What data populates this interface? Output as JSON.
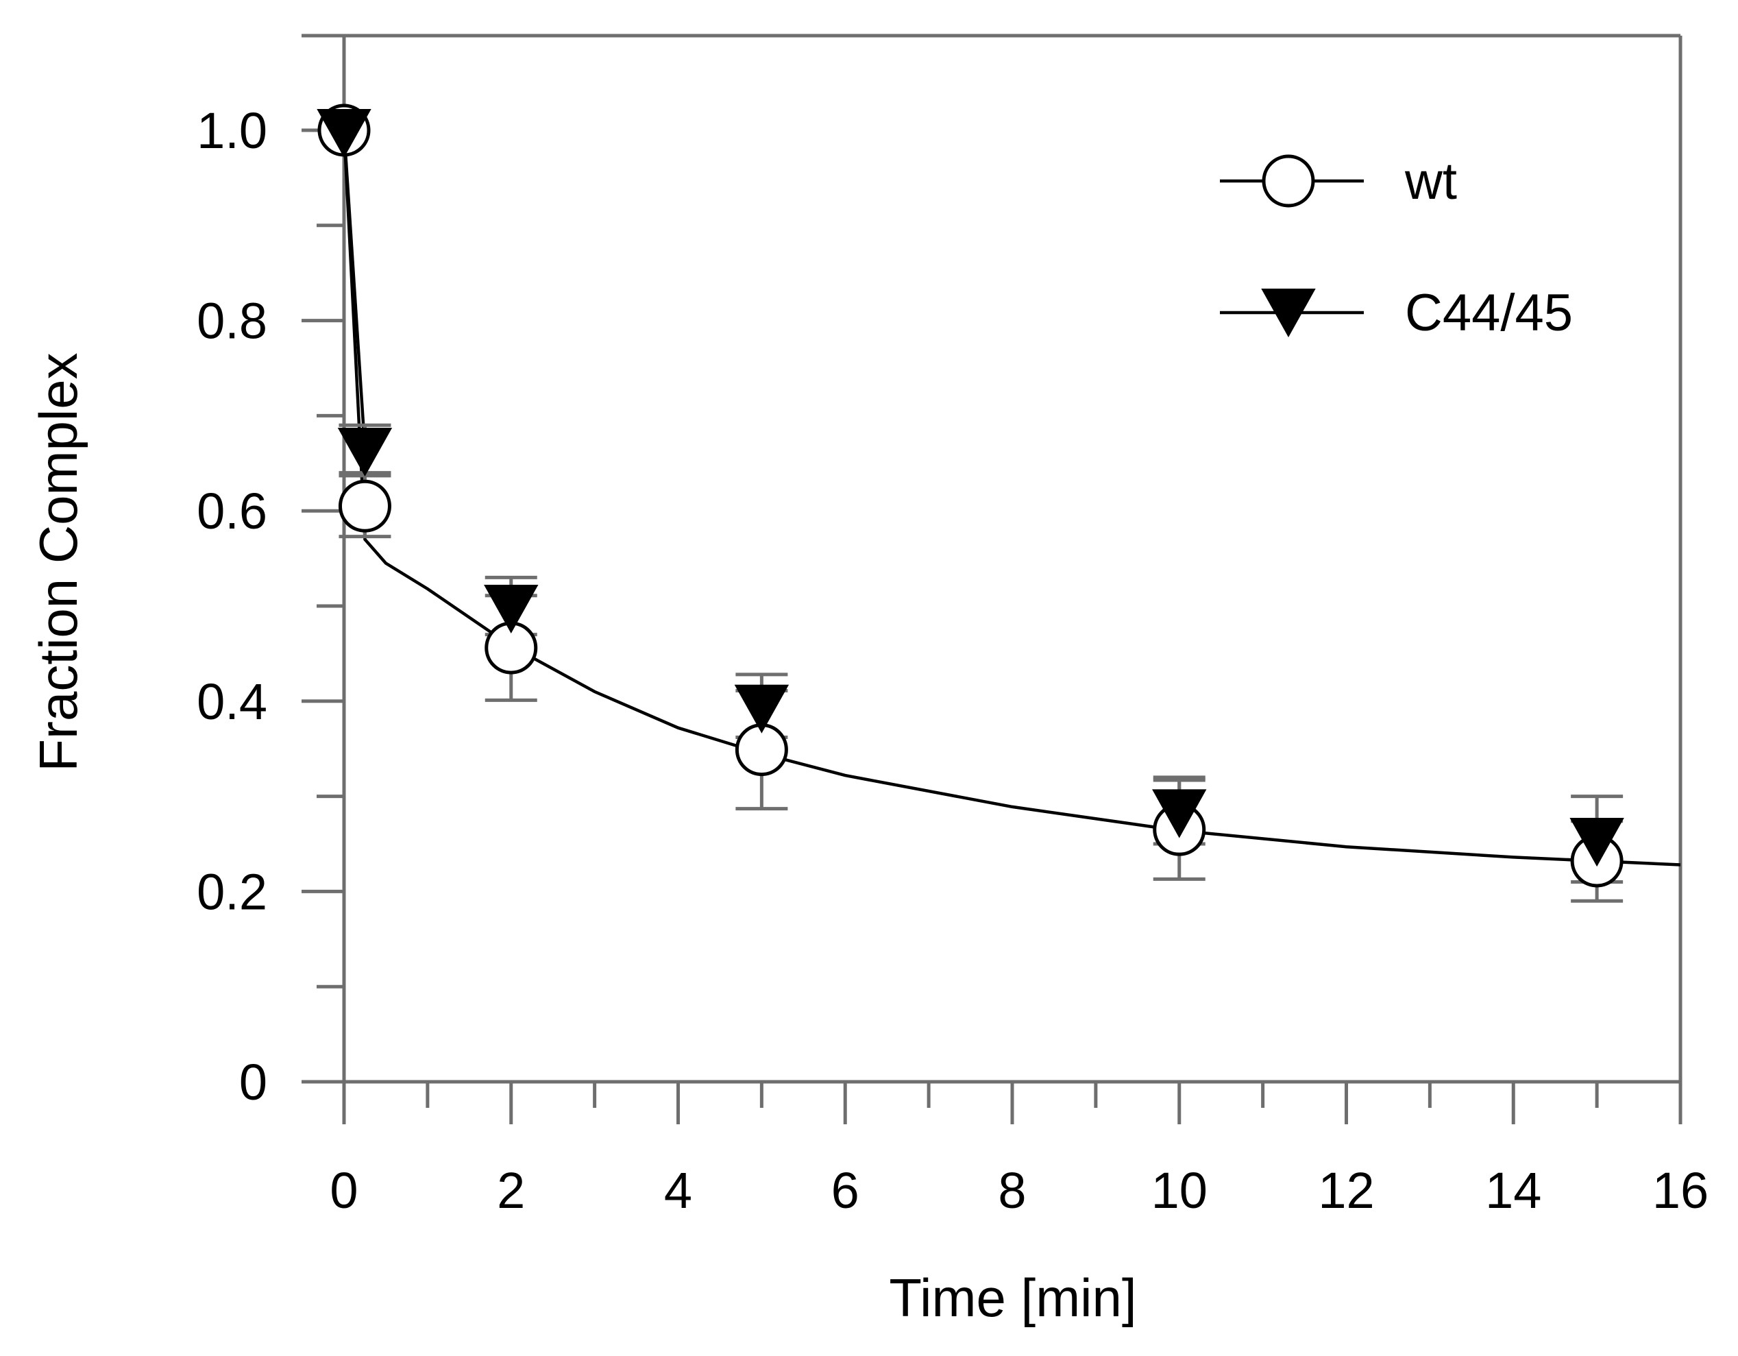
{
  "chart_data": {
    "type": "scatter",
    "title": "",
    "xlabel": "Time [min]",
    "ylabel": "Fraction Complex",
    "xlim": [
      -0.5,
      16
    ],
    "ylim": [
      -0.0,
      1.1
    ],
    "xticks": [
      0,
      2,
      4,
      6,
      8,
      10,
      12,
      14,
      16
    ],
    "xtick_labels": [
      "0",
      "2",
      "4",
      "6",
      "8",
      "10",
      "12",
      "14",
      "16"
    ],
    "yticks": [
      0,
      0.2,
      0.4,
      0.6,
      0.8,
      1.0
    ],
    "ytick_labels": [
      "0",
      "0.2",
      "0.4",
      "0.6",
      "0.8",
      "1.0"
    ],
    "legend_position": "top-right",
    "series": [
      {
        "name": "wt",
        "marker": "circle-open",
        "x": [
          0,
          0.25,
          2,
          5,
          10,
          15
        ],
        "y": [
          1.0,
          0.605,
          0.456,
          0.349,
          0.265,
          0.232
        ],
        "error": [
          0.0,
          0.032,
          0.055,
          0.062,
          0.052,
          0.042
        ]
      },
      {
        "name": "C44/45",
        "marker": "triangle-down-filled",
        "x": [
          0,
          0.25,
          2,
          5,
          10,
          15
        ],
        "y": [
          1.0,
          0.665,
          0.5,
          0.395,
          0.285,
          0.255
        ],
        "error": [
          0.0,
          0.025,
          0.03,
          0.033,
          0.035,
          0.045
        ]
      }
    ],
    "fit_line": {
      "x": [
        0,
        0.25,
        0.5,
        1,
        2,
        3,
        4,
        5,
        6,
        8,
        10,
        12,
        14,
        16
      ],
      "y": [
        1.0,
        0.57,
        0.545,
        0.518,
        0.458,
        0.41,
        0.372,
        0.345,
        0.322,
        0.289,
        0.264,
        0.247,
        0.236,
        0.228
      ]
    }
  }
}
